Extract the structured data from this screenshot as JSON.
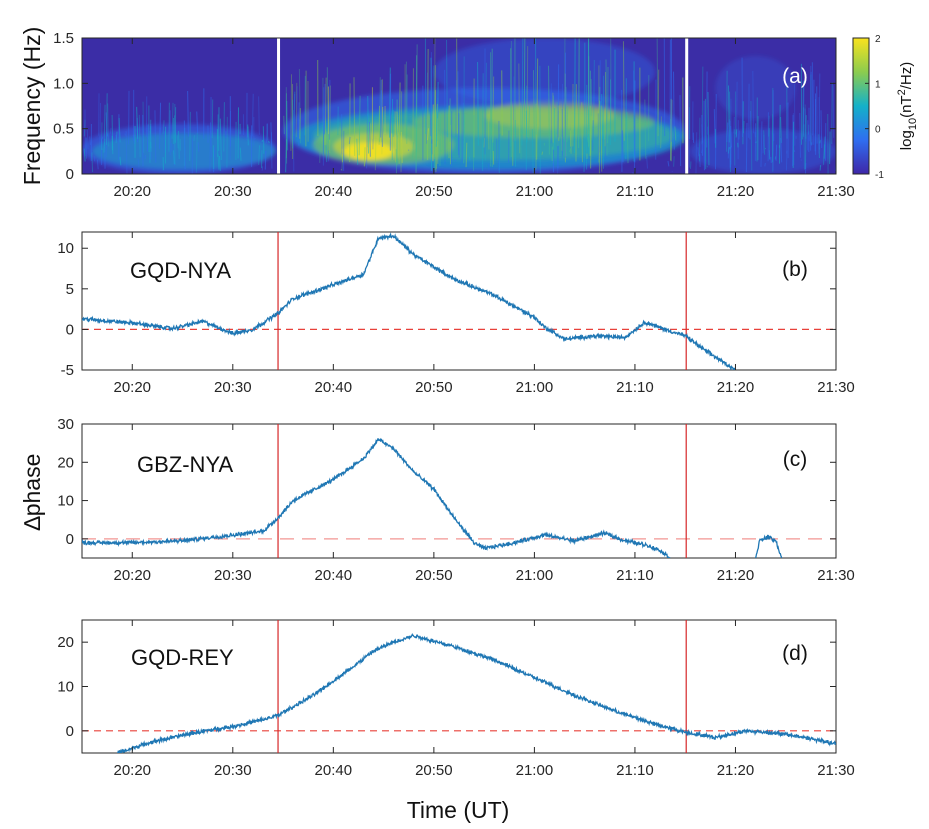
{
  "figure": {
    "ylabel_a": "Frequency (Hz)",
    "ylabel_phase": "∆phase",
    "xlabel": "Time (UT)",
    "colorbar_label": "log10(nT²/Hz)",
    "colorbar_label_main": "log",
    "colorbar_label_sub": "10",
    "colorbar_label_rest": "(nT",
    "colorbar_label_sup": "2",
    "colorbar_label_tail": "/Hz)",
    "colorbar_ticks": [
      "2",
      "1",
      "0",
      "-1"
    ],
    "colors": {
      "trace": "#1f77b4",
      "event_line": "#d62728",
      "zero_line": "#e8413a",
      "spectro_low": "#3b2da6",
      "spectro_high": "#fde725"
    },
    "event_markers_min": [
      34.5,
      75.1
    ]
  },
  "chart_data": [
    {
      "type": "heatmap",
      "panel": "(a)",
      "xlim_min": [
        15,
        90
      ],
      "ylim": [
        0,
        1.5
      ],
      "x_ticks": [
        "20:20",
        "20:30",
        "20:40",
        "20:50",
        "21:00",
        "21:10",
        "21:20",
        "21:30"
      ],
      "y_ticks": [
        "0",
        "0.5",
        "1.0",
        "1.5"
      ],
      "color_range_log10": [
        -1,
        2
      ],
      "gaps_min": [
        34.5,
        75.1
      ]
    },
    {
      "type": "line",
      "panel": "(b)",
      "series_label": "GQD-NYA",
      "xlim_min": [
        15,
        90
      ],
      "ylim": [
        -5,
        12
      ],
      "x_ticks": [
        "20:20",
        "20:30",
        "20:40",
        "20:50",
        "21:00",
        "21:10",
        "21:20",
        "21:30"
      ],
      "y_ticks": [
        "10",
        "5",
        "0",
        "-5"
      ],
      "reference_y": 0,
      "x": [
        15,
        20,
        24,
        27,
        30,
        32,
        34.5,
        36,
        40,
        43,
        44.5,
        46,
        48,
        52,
        56,
        60,
        61,
        63,
        66,
        69,
        71,
        73,
        75,
        77,
        80
      ],
      "y": [
        1.3,
        0.8,
        0.1,
        1.0,
        -0.5,
        0.0,
        2.0,
        3.8,
        5.5,
        6.8,
        11.3,
        11.5,
        9.2,
        6.2,
        4.2,
        1.5,
        0.3,
        -1.2,
        -0.8,
        -1.0,
        0.9,
        0.0,
        -0.8,
        -2.6,
        -5.0
      ]
    },
    {
      "type": "line",
      "panel": "(c)",
      "series_label": "GBZ-NYA",
      "xlim_min": [
        15,
        90
      ],
      "ylim": [
        -5,
        30
      ],
      "x_ticks": [
        "20:20",
        "20:30",
        "20:40",
        "20:50",
        "21:00",
        "21:10",
        "21:20",
        "21:30"
      ],
      "y_ticks": [
        "30",
        "20",
        "10",
        "0"
      ],
      "reference_y": 0,
      "x": [
        15,
        20,
        25,
        30,
        33,
        34.5,
        36,
        40,
        43,
        44.5,
        46,
        48,
        50,
        52,
        54,
        55,
        58,
        61,
        64,
        67,
        69,
        71,
        72.5,
        73.5
      ],
      "y": [
        -1,
        -1,
        -0.5,
        1.0,
        2.0,
        5.5,
        10.0,
        15.5,
        21.0,
        26.0,
        23.5,
        17.5,
        13.0,
        5.5,
        -1.0,
        -2.5,
        -1.0,
        1.0,
        -0.5,
        1.5,
        -0.5,
        -1.5,
        -3.0,
        -5.0
      ],
      "x_segment2": [
        82.0,
        82.4,
        83.2,
        84.0,
        84.6
      ],
      "y_segment2": [
        -5.0,
        -0.5,
        0.5,
        -0.5,
        -5.0
      ]
    },
    {
      "type": "line",
      "panel": "(d)",
      "series_label": "GQD-REY",
      "xlim_min": [
        15,
        90
      ],
      "ylim": [
        -5,
        25
      ],
      "x_ticks": [
        "20:20",
        "20:30",
        "20:40",
        "20:50",
        "21:00",
        "21:10",
        "21:20",
        "21:30"
      ],
      "y_ticks": [
        "20",
        "10",
        "0"
      ],
      "reference_y": 0,
      "x": [
        18.5,
        22,
        26,
        30,
        33,
        34.5,
        38,
        42,
        44,
        46,
        48,
        52,
        56,
        60,
        64,
        68,
        72,
        75,
        78,
        81,
        84,
        87,
        90
      ],
      "y": [
        -5.0,
        -2.5,
        -0.5,
        1.0,
        2.5,
        3.5,
        8.0,
        14.5,
        18.0,
        20.0,
        21.5,
        19.0,
        16.0,
        12.0,
        8.0,
        4.5,
        1.5,
        -0.3,
        -1.5,
        0.0,
        -0.5,
        -1.5,
        -3.0
      ]
    }
  ]
}
